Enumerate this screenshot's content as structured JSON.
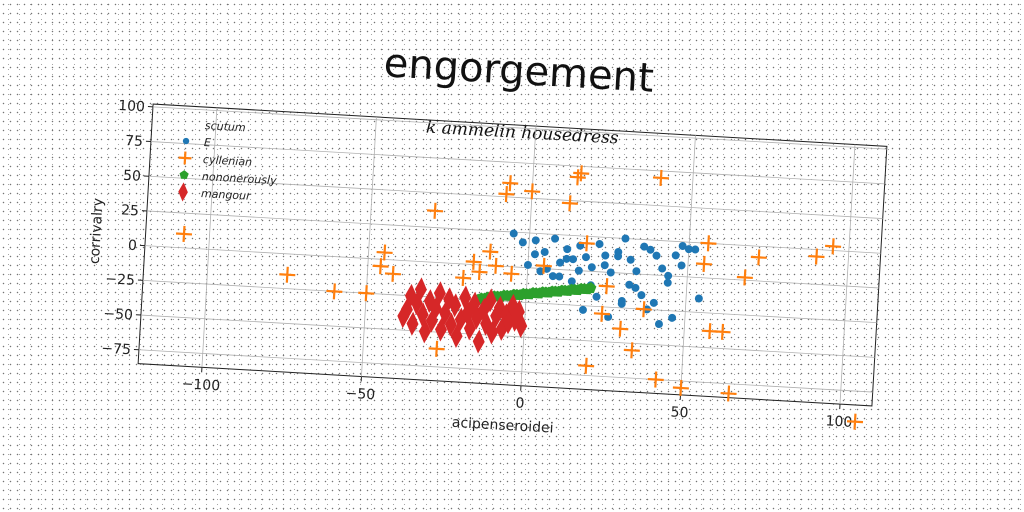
{
  "chart_data": {
    "type": "scatter",
    "title": "engorgement",
    "subtitle": "k ammelin housedress",
    "xlabel": "acipenseroidei",
    "ylabel": "corrivalry",
    "xlim": [
      -120,
      110
    ],
    "ylim": [
      -85,
      102
    ],
    "xticks": [
      -100,
      -50,
      0,
      50,
      100
    ],
    "yticks": [
      100,
      75,
      50,
      25,
      0,
      -25,
      -50,
      -75
    ],
    "grid": true,
    "legend_position": "top-left",
    "series": [
      {
        "name": "scutum",
        "color": "#ffffff",
        "marker": "none",
        "x": [],
        "y": []
      },
      {
        "name": "E",
        "color": "#1f77b4",
        "marker": "circle",
        "x": [
          -5,
          -2,
          2,
          5,
          8,
          10,
          12,
          14,
          16,
          18,
          20,
          22,
          24,
          26,
          28,
          30,
          32,
          34,
          36,
          38,
          40,
          42,
          44,
          46,
          48,
          50,
          0,
          4,
          8,
          12,
          16,
          20,
          24,
          28,
          32,
          36,
          40,
          44,
          48,
          52,
          2,
          6,
          14,
          22,
          30,
          38,
          46,
          54,
          18,
          26,
          34,
          42,
          10,
          30
        ],
        "y": [
          24,
          18,
          20,
          12,
          22,
          5,
          15,
          8,
          18,
          10,
          3,
          20,
          12,
          0,
          15,
          25,
          10,
          2,
          20,
          18,
          14,
          5,
          0,
          15,
          22,
          20,
          2,
          -2,
          -5,
          8,
          0,
          -10,
          5,
          12,
          -8,
          -15,
          -20,
          -5,
          8,
          20,
          10,
          0,
          -8,
          -18,
          -22,
          -25,
          -30,
          -15,
          -28,
          -32,
          -10,
          -35,
          -5,
          -20
        ]
      },
      {
        "name": "cyllenian",
        "color": "#ff7f0e",
        "marker": "plus",
        "x": [
          -108,
          -75,
          -60,
          -50,
          -46,
          -45,
          -42,
          -30,
          -27,
          -20,
          -17,
          -15,
          -12,
          -10,
          -8,
          -7,
          0,
          5,
          12,
          14,
          15,
          18,
          20,
          25,
          30,
          34,
          37,
          40,
          42,
          50,
          55,
          56,
          58,
          62,
          65,
          68,
          72,
          90,
          95,
          105,
          -5,
          24
        ],
        "y": [
          10,
          -15,
          -25,
          -25,
          -5,
          5,
          -10,
          37,
          -62,
          -10,
          2,
          -5,
          10,
          0,
          52,
          60,
          55,
          2,
          48,
          67,
          70,
          20,
          -68,
          -10,
          -40,
          -55,
          -25,
          70,
          -75,
          -80,
          10,
          25,
          -38,
          -38,
          -82,
          2,
          17,
          20,
          28,
          -97,
          -5,
          -30
        ]
      },
      {
        "name": "nononerously",
        "color": "#2ca02c",
        "marker": "pentagon",
        "x": [
          -15,
          -14,
          -13,
          -12,
          -11,
          -10,
          -9,
          -8,
          -7,
          -6,
          -5,
          -4,
          -3,
          -2,
          -1,
          0,
          1,
          2,
          3,
          4,
          5,
          6,
          7,
          8,
          9,
          10,
          11,
          12,
          13,
          14,
          15,
          16,
          17,
          18,
          19,
          20
        ],
        "y": [
          -25,
          -24,
          -24,
          -23,
          -23,
          -22,
          -22,
          -22,
          -21,
          -21,
          -21,
          -20,
          -20,
          -20,
          -19,
          -19,
          -19,
          -18,
          -18,
          -18,
          -17,
          -17,
          -17,
          -16,
          -16,
          -16,
          -15,
          -15,
          -15,
          -14,
          -14,
          -14,
          -13,
          -13,
          -13,
          -12
        ]
      },
      {
        "name": "mangour",
        "color": "#d62728",
        "marker": "diamond",
        "x": [
          -38,
          -37,
          -36,
          -35,
          -34,
          -33,
          -32,
          -31,
          -30,
          -29,
          -28,
          -27,
          -26,
          -25,
          -24,
          -23,
          -22,
          -21,
          -20,
          -19,
          -18,
          -17,
          -16,
          -15,
          -14,
          -13,
          -12,
          -11,
          -10,
          -9,
          -8,
          -7,
          -6,
          -5,
          -4,
          -3,
          -2,
          -1
        ],
        "y": [
          -40,
          -35,
          -25,
          -45,
          -30,
          -20,
          -38,
          -50,
          -28,
          -42,
          -33,
          -22,
          -48,
          -36,
          -26,
          -44,
          -30,
          -52,
          -40,
          -24,
          -35,
          -46,
          -28,
          -38,
          -55,
          -32,
          -42,
          -25,
          -48,
          -36,
          -30,
          -45,
          -35,
          -40,
          -28,
          -38,
          -32,
          -42
        ]
      }
    ]
  }
}
